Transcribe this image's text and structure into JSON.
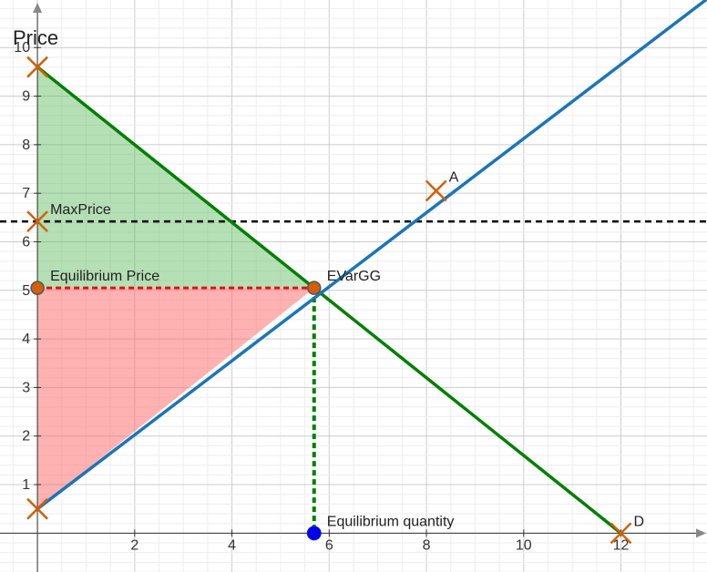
{
  "chart_data": {
    "type": "line",
    "ylabel": "Price",
    "xlabel": "",
    "xlim": [
      -0.77,
      13.77
    ],
    "ylim": [
      -0.8,
      10.98
    ],
    "x_ticks": [
      2,
      4,
      6,
      8,
      10,
      12
    ],
    "y_ticks": [
      1,
      2,
      3,
      4,
      5,
      6,
      7,
      8,
      9,
      10
    ],
    "grid": true,
    "colors": {
      "demand": "#008000",
      "supply": "#1c75b8",
      "consumer_surplus": "#5cb85c",
      "producer_surplus": "#ff6666",
      "price_ceiling": "#000000",
      "equilibrium_price_line": "#e01010",
      "equilibrium_quantity_line": "#008000",
      "cross_marker": "#d2600a",
      "equilibrium_point": "#d2600a",
      "quantity_point": "#0000ee"
    },
    "series": [
      {
        "name": "",
        "kind": "demand",
        "points": [
          [
            0,
            9.6
          ],
          [
            12,
            0
          ]
        ]
      },
      {
        "name": "",
        "kind": "supply",
        "points": [
          [
            0,
            0.5
          ],
          [
            13.77,
            11
          ]
        ]
      }
    ],
    "shaded_regions": [
      {
        "kind": "consumer_surplus",
        "points": [
          [
            0,
            9.6
          ],
          [
            5.69,
            5.05
          ],
          [
            0,
            5.05
          ]
        ]
      },
      {
        "kind": "producer_surplus",
        "points": [
          [
            0,
            5.05
          ],
          [
            5.69,
            5.05
          ],
          [
            0,
            0.5
          ]
        ]
      }
    ],
    "reference_lines": [
      {
        "kind": "price_ceiling",
        "y": 6.42
      },
      {
        "kind": "equilibrium_price_line",
        "from": [
          0,
          5.05
        ],
        "to": [
          5.69,
          5.05
        ]
      },
      {
        "kind": "equilibrium_quantity_line",
        "from": [
          5.69,
          5.05
        ],
        "to": [
          5.69,
          0
        ]
      }
    ],
    "points": [
      {
        "label": "",
        "x": 0,
        "y": 9.6,
        "marker": "cross"
      },
      {
        "label": "",
        "x": 0,
        "y": 0.5,
        "marker": "cross"
      },
      {
        "label": "A",
        "x": 8.2,
        "y": 7.05,
        "marker": "cross"
      },
      {
        "label": "D",
        "x": 12,
        "y": 0,
        "marker": "cross"
      },
      {
        "label": "MaxPrice",
        "x": 0,
        "y": 6.42,
        "marker": "cross"
      },
      {
        "label": "Equilibrium Price",
        "x": 0,
        "y": 5.05,
        "marker": "dot"
      },
      {
        "label": "EVarGG",
        "x": 5.69,
        "y": 5.05,
        "marker": "dot"
      },
      {
        "label": "Equilibrium quantity",
        "x": 5.69,
        "y": 0,
        "marker": "blue-dot"
      }
    ]
  }
}
